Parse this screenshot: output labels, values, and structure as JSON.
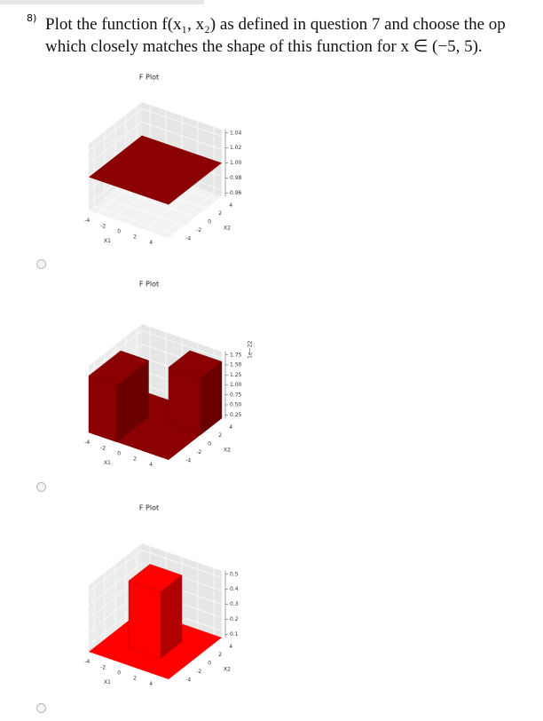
{
  "question": {
    "number": "8)",
    "line1": "Plot the function f(x₁, x₂) as defined in question 7 and choose the op",
    "line2": "which closely matches the shape of this function for x ∈ (−5, 5)."
  },
  "options": [
    {
      "plot": {
        "title": "F Plot",
        "x1_label": "X1",
        "x2_label": "X2",
        "x1_ticks": [
          "-4",
          "-2",
          "0",
          "2",
          "4"
        ],
        "x2_ticks": [
          "-4",
          "-2",
          "0",
          "2",
          "4"
        ],
        "z_ticks": [
          "1.04",
          "1.02",
          "1.00",
          "0.98",
          "0.96"
        ]
      }
    },
    {
      "plot": {
        "title": "F Plot",
        "x1_label": "X1",
        "x2_label": "X2",
        "x1_ticks": [
          "-4",
          "-2",
          "0",
          "2",
          "4"
        ],
        "x2_ticks": [
          "-4",
          "-2",
          "0",
          "2",
          "4"
        ],
        "z_ticks": [
          "1.75",
          "1.50",
          "1.25",
          "1.00",
          "0.75",
          "0.50",
          "0.25"
        ],
        "z_offset": "1e−22"
      }
    },
    {
      "plot": {
        "title": "F Plot",
        "x1_label": "X1",
        "x2_label": "X2",
        "x1_ticks": [
          "-4",
          "-2",
          "0",
          "2",
          "4"
        ],
        "x2_ticks": [
          "-4",
          "-2",
          "0",
          "2",
          "4"
        ],
        "z_ticks": [
          "0.5",
          "0.4",
          "0.3",
          "0.2",
          "0.1"
        ]
      }
    }
  ]
}
